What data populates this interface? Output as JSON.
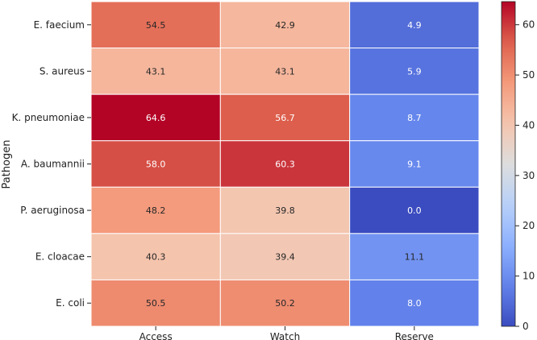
{
  "chart_data": {
    "type": "heatmap",
    "title": "",
    "xlabel": "",
    "ylabel": "Pathogen",
    "columns": [
      "Access",
      "Watch",
      "Reserve"
    ],
    "rows": [
      "E. faecium",
      "S. aureus",
      "K. pneumoniae",
      "A. baumannii",
      "P. aeruginosa",
      "E. cloacae",
      "E. coli"
    ],
    "values": [
      [
        54.5,
        42.9,
        4.9
      ],
      [
        43.1,
        43.1,
        5.9
      ],
      [
        64.6,
        56.7,
        8.7
      ],
      [
        58.0,
        60.3,
        9.1
      ],
      [
        48.2,
        39.8,
        0.0
      ],
      [
        40.3,
        39.4,
        11.1
      ],
      [
        50.5,
        50.2,
        8.0
      ]
    ],
    "value_labels": [
      [
        "54.5",
        "42.9",
        "4.9"
      ],
      [
        "43.1",
        "43.1",
        "5.9"
      ],
      [
        "64.6",
        "56.7",
        "8.7"
      ],
      [
        "58.0",
        "60.3",
        "9.1"
      ],
      [
        "48.2",
        "39.8",
        "0.0"
      ],
      [
        "40.3",
        "39.4",
        "11.1"
      ],
      [
        "50.5",
        "50.2",
        "8.0"
      ]
    ],
    "colormap": "coolwarm",
    "vmin": 0,
    "vmax": 64.6,
    "colorbar_ticks": [
      0,
      10,
      20,
      30,
      40,
      50,
      60
    ],
    "colorbar_tick_labels": [
      "0",
      "10",
      "20",
      "30",
      "40",
      "50",
      "60"
    ]
  }
}
